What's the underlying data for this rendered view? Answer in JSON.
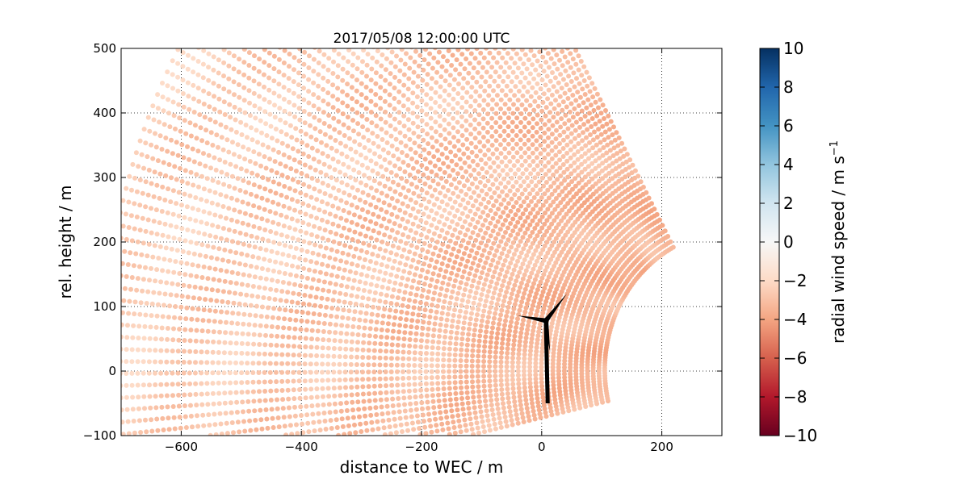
{
  "chart_data": {
    "type": "scatter",
    "title": "2017/05/08 12:00:00 UTC",
    "xlabel": "distance to WEC / m",
    "ylabel": "rel. height / m",
    "xlim": [
      -700,
      300
    ],
    "ylim": [
      -100,
      500
    ],
    "xticks": [
      "−600",
      "−400",
      "−200",
      "0",
      "200"
    ],
    "xtick_values": [
      -600,
      -400,
      -200,
      0,
      200
    ],
    "yticks": [
      "−100",
      "0",
      "100",
      "200",
      "300",
      "400",
      "500"
    ],
    "ytick_values": [
      -100,
      0,
      100,
      200,
      300,
      400,
      500
    ],
    "grid": true,
    "scan": {
      "description_free": true,
      "sweep_angle_deg": [
        -13,
        62
      ],
      "range_min_m": 215,
      "range_max_m": 1050,
      "origin_x_m": 320,
      "origin_y_m": 2
    },
    "colorbar": {
      "label": "radial wind speed / m s",
      "label_superscript": "−1",
      "cmap": "RdBu",
      "min": -10,
      "max": 10,
      "ticks": [
        "10",
        "8",
        "6",
        "4",
        "2",
        "0",
        "−2",
        "−4",
        "−6",
        "−8",
        "−10"
      ],
      "tick_values": [
        10,
        8,
        6,
        4,
        2,
        0,
        -2,
        -4,
        -6,
        -8,
        -10
      ],
      "colors": [
        "#67001f",
        "#b2182b",
        "#d6604d",
        "#f4a582",
        "#fddbc7",
        "#f7f7f7",
        "#d1e5f0",
        "#92c5de",
        "#4393c3",
        "#2166ac",
        "#053061"
      ]
    },
    "typical_radial_speed_m_s": -3.0,
    "turbine": {
      "tower_base": [
        10,
        -50
      ],
      "hub": [
        7,
        78
      ],
      "blade_tips": [
        [
          -40,
          86
        ],
        [
          42,
          120
        ],
        [
          14,
          30
        ]
      ]
    }
  }
}
